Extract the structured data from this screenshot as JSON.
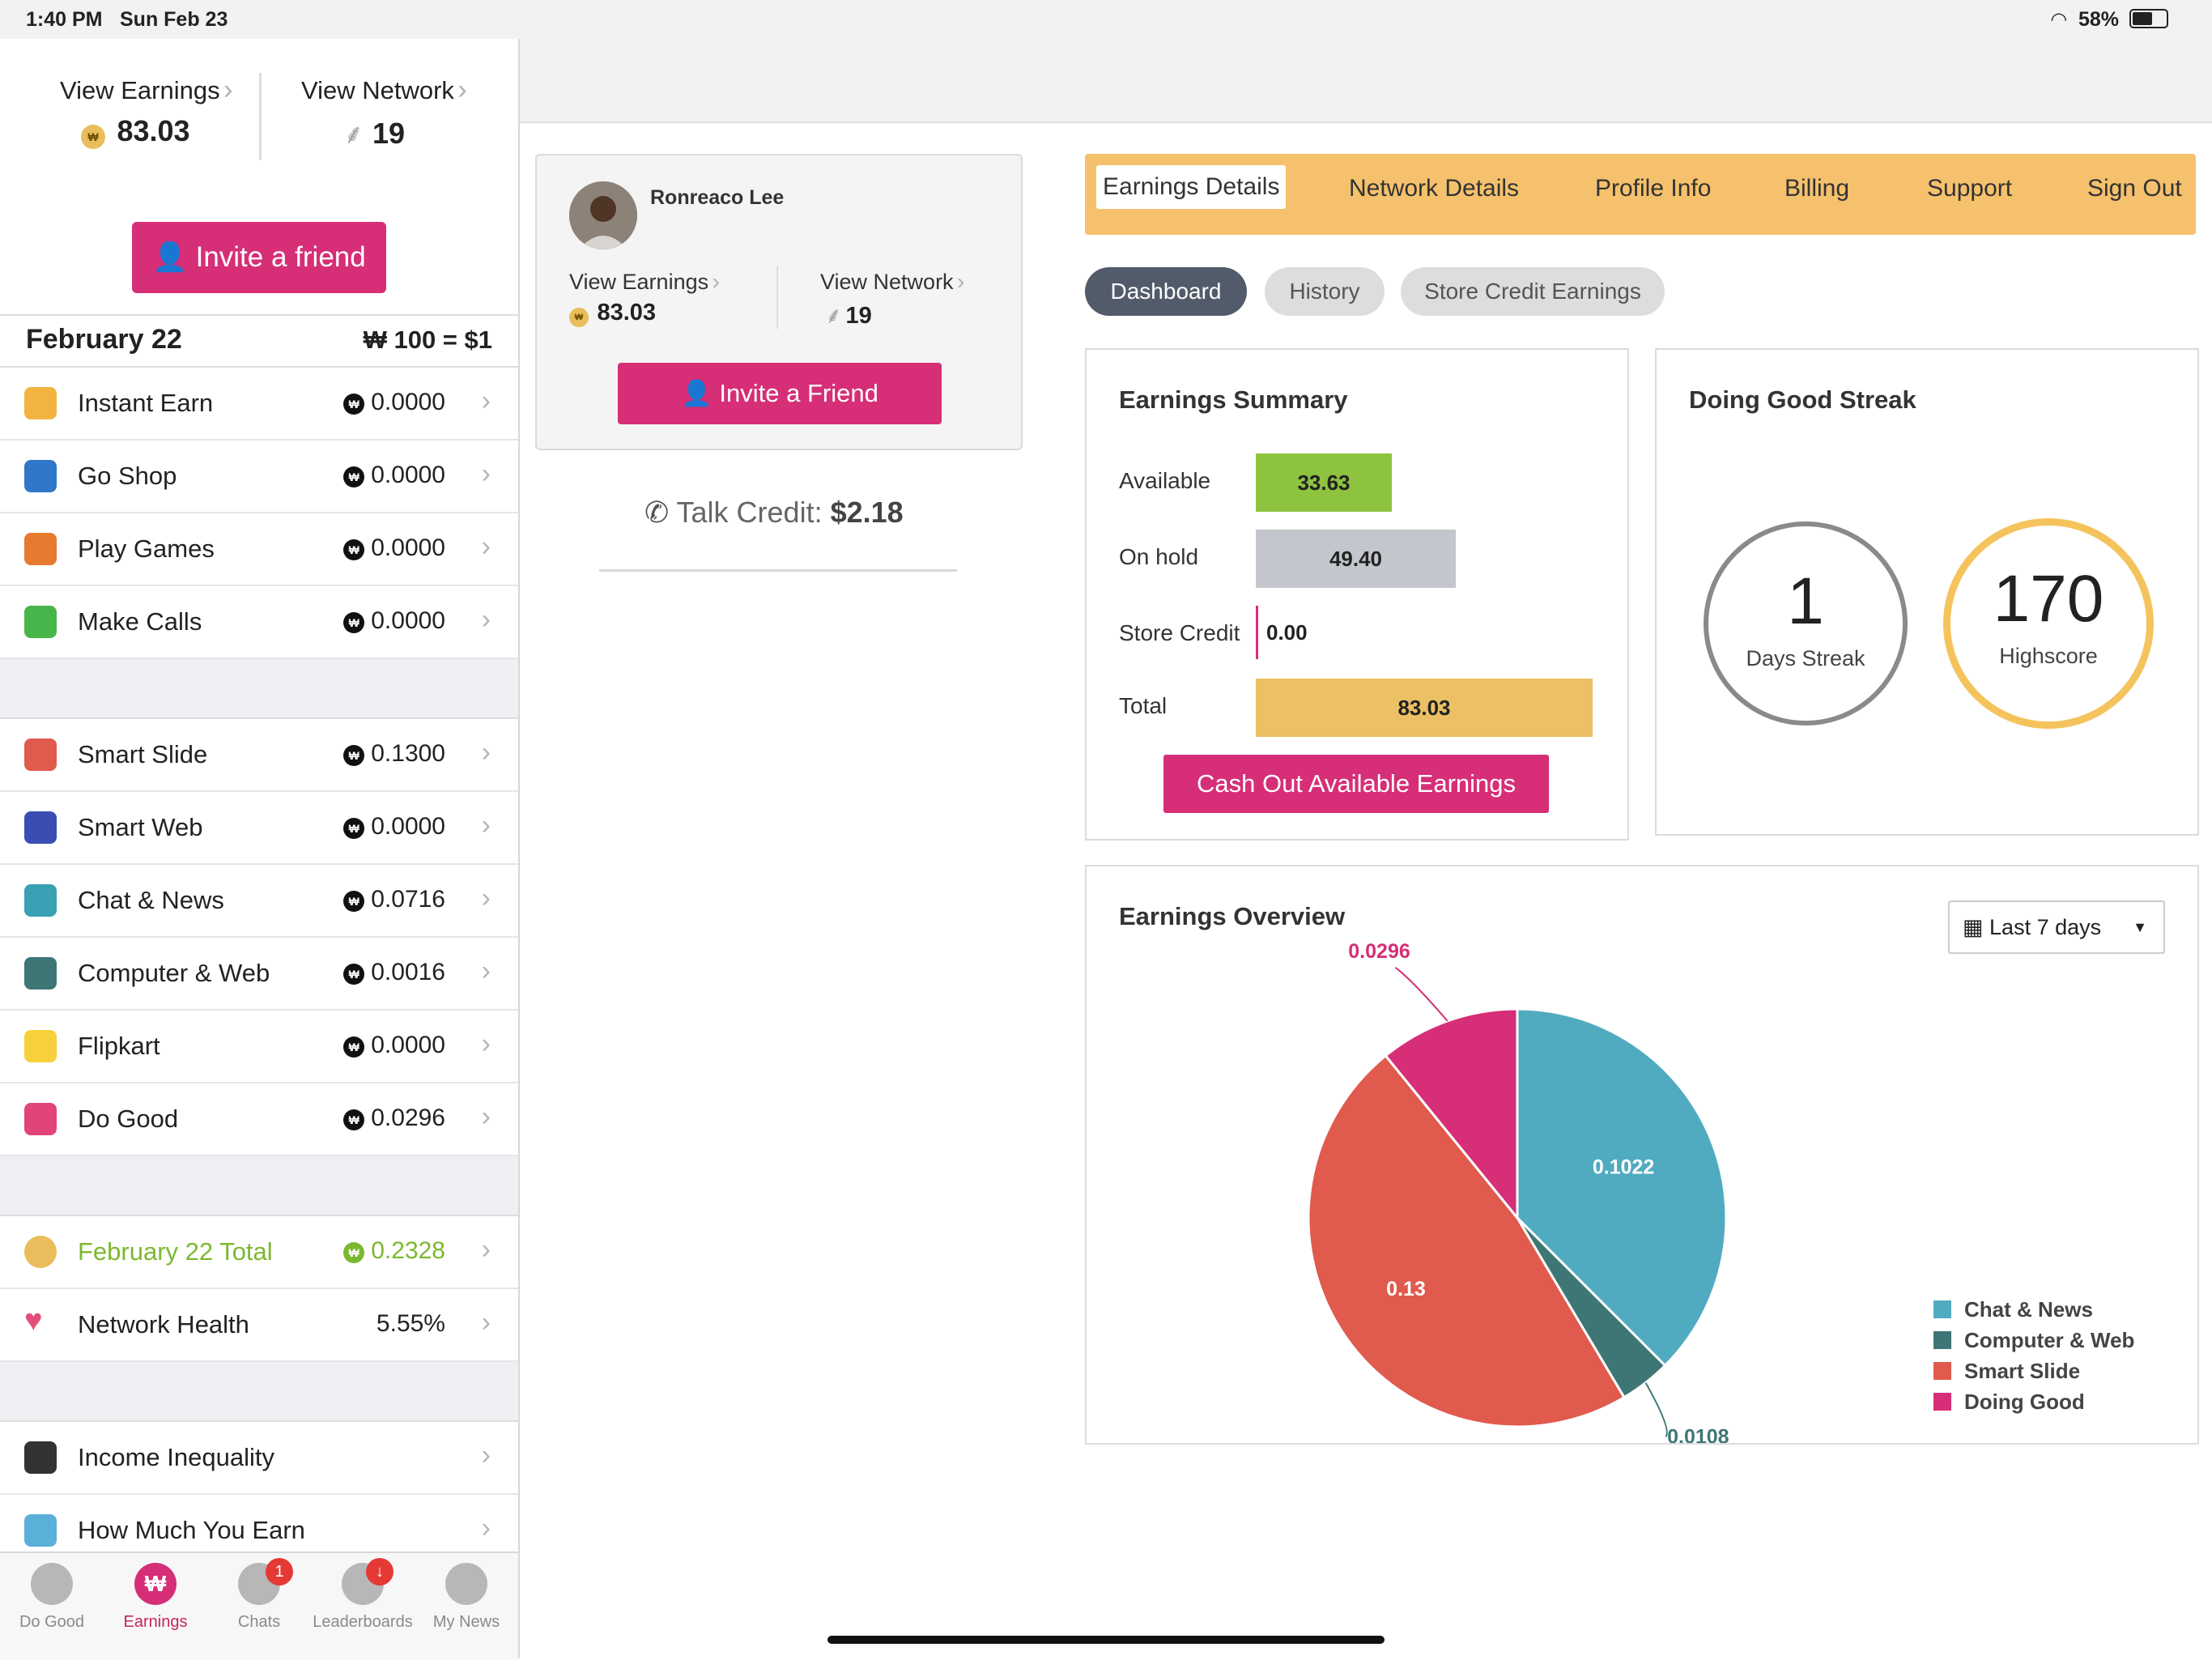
{
  "status": {
    "time": "1:40 PM",
    "date": "Sun Feb 23",
    "battery": "58%"
  },
  "sidebar": {
    "view_earnings_label": "View Earnings",
    "earnings_value": "83.03",
    "view_network_label": "View Network",
    "network_value": "19",
    "invite_label": "Invite a friend",
    "day": "February 22",
    "rate": "₩ 100 = $1",
    "group1": [
      {
        "label": "Instant Earn",
        "value": "0.0000",
        "icon": "tag-icon"
      },
      {
        "label": "Go Shop",
        "value": "0.0000",
        "icon": "cart-icon"
      },
      {
        "label": "Play Games",
        "value": "0.0000",
        "icon": "gamepad-icon"
      },
      {
        "label": "Make Calls",
        "value": "0.0000",
        "icon": "phone-icon"
      }
    ],
    "group2": [
      {
        "label": "Smart Slide",
        "value": "0.1300",
        "icon": "phone-slide-icon"
      },
      {
        "label": "Smart Web",
        "value": "0.0000",
        "icon": "globe-icon"
      },
      {
        "label": "Chat & News",
        "value": "0.0716",
        "icon": "chat-news-icon"
      },
      {
        "label": "Computer & Web",
        "value": "0.0016",
        "icon": "monitor-icon"
      },
      {
        "label": "Flipkart",
        "value": "0.0000",
        "icon": "flipkart-icon"
      },
      {
        "label": "Do Good",
        "value": "0.0296",
        "icon": "heart-icon"
      }
    ],
    "total_label": "February 22 Total",
    "total_value": "0.2328",
    "network_health_label": "Network Health",
    "network_health_value": "5.55%",
    "group3": [
      {
        "label": "Income Inequality",
        "icon": "top-hat-icon"
      },
      {
        "label": "How Much You Earn",
        "icon": "percent-icon"
      }
    ]
  },
  "tabbar": [
    {
      "label": "Do Good",
      "icon": "heart-hands-icon"
    },
    {
      "label": "Earnings",
      "icon": "won-coin-icon"
    },
    {
      "label": "Chats",
      "icon": "chat-bubbles-icon",
      "badge": "1"
    },
    {
      "label": "Leaderboards",
      "icon": "medal-icon",
      "badge": "↓"
    },
    {
      "label": "My News",
      "icon": "globe-news-icon"
    }
  ],
  "profile": {
    "name": "Ronreaco Lee",
    "view_earnings_label": "View Earnings",
    "earnings_value": "83.03",
    "view_network_label": "View Network",
    "network_value": "19",
    "invite_label": "Invite a Friend",
    "talk_label": "Talk Credit:",
    "talk_value": "$2.18"
  },
  "nav": [
    "Earnings Details",
    "Network Details",
    "Profile Info",
    "Billing",
    "Support",
    "Sign Out"
  ],
  "pills": [
    "Dashboard",
    "History",
    "Store Credit Earnings"
  ],
  "summary": {
    "title": "Earnings Summary",
    "rows": [
      {
        "label": "Available",
        "value": "33.63",
        "color": "#8dc33f"
      },
      {
        "label": "On hold",
        "value": "49.40",
        "color": "#c3c6cc"
      },
      {
        "label": "Store Credit",
        "value": "0.00",
        "color": "#d62e77"
      },
      {
        "label": "Total",
        "value": "83.03",
        "color": "#ecc064"
      }
    ],
    "cashout_label": "Cash Out Available Earnings"
  },
  "streak": {
    "title": "Doing Good Streak",
    "days_value": "1",
    "days_label": "Days Streak",
    "high_value": "170",
    "high_label": "Highscore"
  },
  "overview": {
    "title": "Earnings Overview",
    "range_label": "Last 7 days"
  },
  "chart_data": {
    "type": "pie",
    "title": "Earnings Overview",
    "slices": [
      {
        "name": "Chat & News",
        "value": 0.1022,
        "label": "0.1022",
        "color": "#51abc0"
      },
      {
        "name": "Computer & Web",
        "value": 0.0108,
        "label": "0.0108",
        "color": "#3e7676"
      },
      {
        "name": "Smart Slide",
        "value": 0.13,
        "label": "0.13",
        "color": "#e05a4d"
      },
      {
        "name": "Doing Good",
        "value": 0.0296,
        "label": "0.0296",
        "color": "#d62e77"
      }
    ],
    "legend": "bottom-right"
  }
}
